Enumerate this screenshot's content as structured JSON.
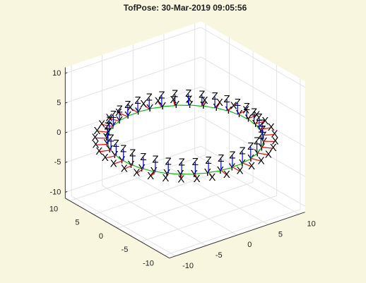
{
  "chart_data": {
    "type": "pose3d",
    "title": "TofPose: 30-Mar-2019 09:05:56",
    "frame_labels": [
      "X",
      "Y",
      "Z"
    ],
    "frame_colors": [
      "#ff0000",
      "#00c000",
      "#0000ff"
    ],
    "x": [
      10,
      9.85,
      9.4,
      8.66,
      7.66,
      6.43,
      5,
      3.42,
      1.74,
      0,
      -1.74,
      -3.42,
      -5,
      -6.43,
      -7.66,
      -8.66,
      -9.4,
      -9.85,
      -10,
      -9.85,
      -9.4,
      -8.66,
      -7.66,
      -6.43,
      -5,
      -3.42,
      -1.74,
      0,
      1.74,
      3.42,
      5,
      6.43,
      7.66,
      8.66,
      9.4,
      9.85
    ],
    "y": [
      0,
      1.74,
      3.42,
      5,
      6.43,
      7.66,
      8.66,
      9.4,
      9.85,
      10,
      9.85,
      9.4,
      8.66,
      7.66,
      6.43,
      5,
      3.42,
      1.74,
      0,
      -1.74,
      -3.42,
      -5,
      -6.43,
      -7.66,
      -8.66,
      -9.4,
      -9.85,
      -10,
      -9.85,
      -9.4,
      -8.66,
      -7.66,
      -6.43,
      -5,
      -3.42,
      -1.74
    ],
    "z": [
      0,
      0,
      0,
      0,
      0,
      0,
      0,
      0,
      0,
      0,
      0,
      0,
      0,
      0,
      0,
      0,
      0,
      0,
      0,
      0,
      0,
      0,
      0,
      0,
      0,
      0,
      0,
      0,
      0,
      0,
      0,
      0,
      0,
      0,
      0,
      0
    ],
    "xlim": [
      -11,
      11
    ],
    "ylim": [
      -11,
      11
    ],
    "zlim": [
      -11,
      11
    ],
    "xticks": [
      -10,
      -5,
      0,
      5,
      10
    ],
    "yticks": [
      -10,
      -5,
      0,
      5,
      10
    ],
    "zticks": [
      -10,
      -5,
      0,
      5,
      10
    ],
    "grid": true
  }
}
